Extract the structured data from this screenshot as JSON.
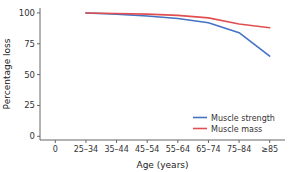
{
  "chart_data": {
    "type": "line",
    "xlabel": "Age (years)",
    "ylabel": "Percentage loss",
    "categories": [
      "0",
      "25–34",
      "35–44",
      "45–54",
      "55–64",
      "65–74",
      "75–84",
      "≥85"
    ],
    "series": [
      {
        "name": "Muscle strength",
        "color": "#4472c4",
        "values": [
          null,
          100,
          99,
          97.5,
          95.5,
          92,
          84,
          65
        ]
      },
      {
        "name": "Muscle mass",
        "color": "#e05050",
        "values": [
          null,
          100,
          99.5,
          99,
          98,
          96,
          91,
          88
        ]
      }
    ],
    "ylim": [
      -3,
      104
    ],
    "yticks": [
      0,
      25,
      50,
      75,
      100
    ],
    "grid": false,
    "legend": "lower right"
  }
}
